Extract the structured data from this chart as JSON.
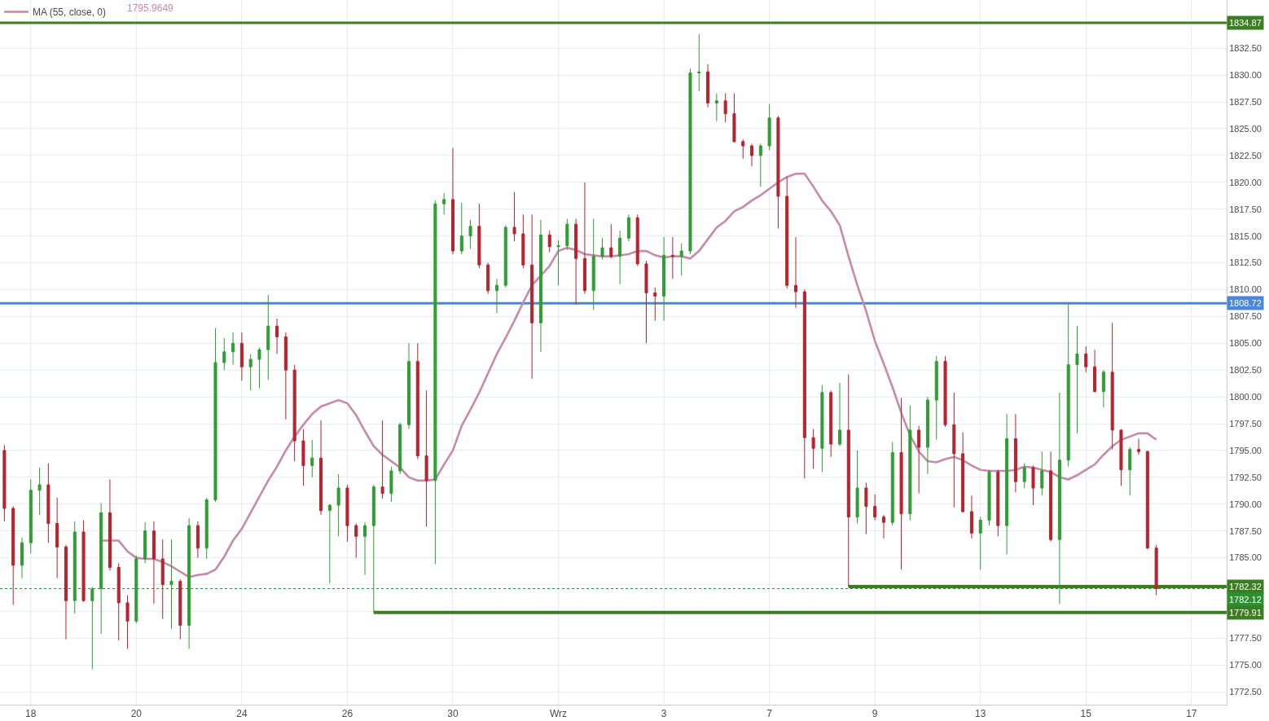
{
  "chart_data": {
    "type": "candlestick",
    "categories": [
      null,
      null,
      null,
      "18",
      null,
      null,
      null,
      null,
      null,
      null,
      null,
      null,
      null,
      null,
      null,
      "20",
      null,
      null,
      null,
      null,
      null,
      null,
      null,
      null,
      null,
      null,
      null,
      "24",
      null,
      null,
      null,
      null,
      null,
      null,
      null,
      null,
      null,
      null,
      null,
      "26",
      null,
      null,
      null,
      null,
      null,
      null,
      null,
      null,
      null,
      null,
      null,
      "30",
      null,
      null,
      null,
      null,
      null,
      null,
      null,
      null,
      null,
      null,
      null,
      "Wrz",
      null,
      null,
      null,
      null,
      null,
      null,
      null,
      null,
      null,
      null,
      null,
      "3",
      null,
      null,
      null,
      null,
      null,
      null,
      null,
      null,
      null,
      null,
      null,
      "7",
      null,
      null,
      null,
      null,
      null,
      null,
      null,
      null,
      null,
      null,
      null,
      "9",
      null,
      null,
      null,
      null,
      null,
      null,
      null,
      null,
      null,
      null,
      null,
      "13",
      null,
      null,
      null,
      null,
      null,
      null,
      null,
      null,
      null,
      null,
      null,
      "15",
      null,
      null,
      null,
      null,
      null,
      null,
      null,
      null,
      null,
      null,
      null,
      "17",
      null,
      null,
      null,
      null
    ],
    "ohlc": [
      [
        1795.0,
        1795.5,
        1788.4,
        1789.6
      ],
      [
        1789.6,
        1789.8,
        1780.6,
        1784.3
      ],
      [
        1784.3,
        1786.9,
        1783.1,
        1786.4
      ],
      [
        1786.4,
        1792.3,
        1785.4,
        1791.3
      ],
      [
        1791.3,
        1793.4,
        1789.0,
        1791.8
      ],
      [
        1791.8,
        1793.8,
        1786.4,
        1788.2
      ],
      [
        1788.2,
        1790.6,
        1783.1,
        1786.0
      ],
      [
        1786.0,
        1786.2,
        1777.4,
        1781.0
      ],
      [
        1781.0,
        1788.4,
        1779.8,
        1787.4
      ],
      [
        1787.4,
        1788.5,
        1780.9,
        1781.0
      ],
      [
        1781.0,
        1782.3,
        1774.6,
        1782.1
      ],
      [
        1782.1,
        1790.1,
        1777.9,
        1789.2
      ],
      [
        1789.2,
        1792.3,
        1783.8,
        1784.1
      ],
      [
        1784.1,
        1784.5,
        1777.3,
        1780.8
      ],
      [
        1780.8,
        1781.5,
        1776.5,
        1779.1
      ],
      [
        1779.1,
        1785.2,
        1778.9,
        1784.9
      ],
      [
        1784.9,
        1788.3,
        1784.5,
        1787.5
      ],
      [
        1787.5,
        1788.4,
        1780.7,
        1784.9
      ],
      [
        1784.9,
        1786.7,
        1779.3,
        1782.5
      ],
      [
        1782.5,
        1786.7,
        1778.4,
        1782.8
      ],
      [
        1782.8,
        1783.0,
        1777.4,
        1778.7
      ],
      [
        1778.7,
        1788.7,
        1776.5,
        1788.0
      ],
      [
        1788.0,
        1788.4,
        1785.0,
        1785.9
      ],
      [
        1785.9,
        1790.6,
        1784.9,
        1790.4
      ],
      [
        1790.4,
        1806.4,
        1790.2,
        1803.2
      ],
      [
        1803.2,
        1805.5,
        1802.5,
        1804.2
      ],
      [
        1804.2,
        1806.0,
        1803.0,
        1805.0
      ],
      [
        1805.0,
        1806.0,
        1801.5,
        1802.8
      ],
      [
        1802.8,
        1804.0,
        1800.6,
        1803.5
      ],
      [
        1803.5,
        1804.6,
        1800.8,
        1804.4
      ],
      [
        1804.4,
        1809.5,
        1801.6,
        1806.6
      ],
      [
        1806.6,
        1807.3,
        1804.0,
        1805.6
      ],
      [
        1805.6,
        1806.0,
        1797.9,
        1802.5
      ],
      [
        1802.5,
        1803.0,
        1794.0,
        1795.9
      ],
      [
        1795.9,
        1797.0,
        1791.7,
        1793.6
      ],
      [
        1793.6,
        1796.0,
        1792.5,
        1794.3
      ],
      [
        1794.3,
        1797.8,
        1789.0,
        1789.4
      ],
      [
        1789.4,
        1790.0,
        1782.6,
        1789.9
      ],
      [
        1789.9,
        1792.8,
        1787.0,
        1791.5
      ],
      [
        1791.5,
        1791.8,
        1786.5,
        1788.0
      ],
      [
        1788.0,
        1788.2,
        1785.0,
        1787.0
      ],
      [
        1787.0,
        1788.3,
        1783.4,
        1788.0
      ],
      [
        1788.0,
        1791.8,
        1779.9,
        1791.6
      ],
      [
        1791.6,
        1797.8,
        1790.5,
        1791.0
      ],
      [
        1791.0,
        1793.5,
        1790.2,
        1793.1
      ],
      [
        1793.1,
        1797.6,
        1792.8,
        1797.4
      ],
      [
        1797.4,
        1805.0,
        1797.0,
        1803.3
      ],
      [
        1803.3,
        1805.0,
        1794.2,
        1794.5
      ],
      [
        1794.5,
        1800.6,
        1787.9,
        1792.2
      ],
      [
        1792.2,
        1818.3,
        1784.4,
        1818.0
      ],
      [
        1818.0,
        1819.0,
        1817.0,
        1818.4
      ],
      [
        1818.4,
        1823.2,
        1813.3,
        1813.6
      ],
      [
        1813.6,
        1818.1,
        1813.3,
        1815.0
      ],
      [
        1815.0,
        1816.5,
        1813.8,
        1815.9
      ],
      [
        1815.9,
        1818.0,
        1812.0,
        1812.3
      ],
      [
        1812.3,
        1812.5,
        1809.6,
        1809.9
      ],
      [
        1809.9,
        1811.0,
        1807.8,
        1810.4
      ],
      [
        1810.4,
        1816.0,
        1810.2,
        1815.8
      ],
      [
        1815.8,
        1819.1,
        1814.5,
        1815.2
      ],
      [
        1815.2,
        1817.0,
        1812.0,
        1812.3
      ],
      [
        1812.3,
        1817.0,
        1801.7,
        1806.9
      ],
      [
        1806.9,
        1816.5,
        1804.2,
        1815.1
      ],
      [
        1815.1,
        1815.5,
        1813.5,
        1814.0
      ],
      [
        1814.0,
        1814.6,
        1810.4,
        1814.1
      ],
      [
        1814.1,
        1816.6,
        1813.7,
        1816.1
      ],
      [
        1816.1,
        1816.6,
        1808.6,
        1812.9
      ],
      [
        1812.9,
        1820.0,
        1809.6,
        1809.9
      ],
      [
        1809.9,
        1816.6,
        1808.1,
        1813.1
      ],
      [
        1813.1,
        1814.8,
        1812.8,
        1813.9
      ],
      [
        1813.9,
        1816.1,
        1812.9,
        1813.1
      ],
      [
        1813.1,
        1815.5,
        1810.5,
        1814.8
      ],
      [
        1814.8,
        1817.0,
        1814.5,
        1816.7
      ],
      [
        1816.7,
        1817.0,
        1812.2,
        1812.4
      ],
      [
        1812.4,
        1812.7,
        1805.0,
        1809.7
      ],
      [
        1809.7,
        1810.2,
        1807.1,
        1809.4
      ],
      [
        1809.4,
        1814.9,
        1807.1,
        1813.2
      ],
      [
        1813.2,
        1814.9,
        1811.0,
        1813.1
      ],
      [
        1813.1,
        1814.3,
        1811.3,
        1813.6
      ],
      [
        1813.6,
        1830.6,
        1813.3,
        1830.2
      ],
      [
        1830.2,
        1833.8,
        1828.5,
        1830.3
      ],
      [
        1830.3,
        1831.0,
        1827.0,
        1827.4
      ],
      [
        1827.4,
        1828.3,
        1825.7,
        1827.6
      ],
      [
        1827.6,
        1828.3,
        1825.6,
        1826.4
      ],
      [
        1826.4,
        1828.3,
        1823.7,
        1823.8
      ],
      [
        1823.8,
        1824.0,
        1822.2,
        1823.4
      ],
      [
        1823.4,
        1823.6,
        1821.5,
        1822.5
      ],
      [
        1822.5,
        1823.6,
        1819.6,
        1823.4
      ],
      [
        1823.4,
        1827.3,
        1823.0,
        1826.0
      ],
      [
        1826.0,
        1826.2,
        1815.7,
        1818.7
      ],
      [
        1818.7,
        1820.5,
        1810.1,
        1810.4
      ],
      [
        1810.4,
        1814.9,
        1808.3,
        1809.8
      ],
      [
        1809.8,
        1810.0,
        1792.4,
        1796.2
      ],
      [
        1796.2,
        1797.0,
        1793.3,
        1795.2
      ],
      [
        1795.2,
        1801.1,
        1793.0,
        1800.4
      ],
      [
        1800.4,
        1800.6,
        1794.4,
        1795.6
      ],
      [
        1795.6,
        1801.3,
        1795.4,
        1796.9
      ],
      [
        1796.9,
        1802.1,
        1782.3,
        1788.8
      ],
      [
        1788.8,
        1795.0,
        1788.2,
        1791.5
      ],
      [
        1791.5,
        1792.0,
        1787.2,
        1789.8
      ],
      [
        1789.8,
        1790.9,
        1788.5,
        1788.8
      ],
      [
        1788.8,
        1789.0,
        1786.8,
        1788.3
      ],
      [
        1788.3,
        1795.8,
        1788.0,
        1794.8
      ],
      [
        1794.8,
        1799.9,
        1783.9,
        1789.1
      ],
      [
        1789.1,
        1799.2,
        1788.5,
        1796.9
      ],
      [
        1796.9,
        1797.3,
        1791.0,
        1795.3
      ],
      [
        1795.3,
        1800.0,
        1792.8,
        1799.7
      ],
      [
        1799.7,
        1803.8,
        1796.0,
        1803.3
      ],
      [
        1803.3,
        1803.8,
        1797.2,
        1797.4
      ],
      [
        1797.4,
        1800.4,
        1789.7,
        1794.7
      ],
      [
        1794.7,
        1796.7,
        1789.2,
        1789.3
      ],
      [
        1789.3,
        1790.8,
        1786.8,
        1787.3
      ],
      [
        1787.3,
        1788.8,
        1783.9,
        1788.5
      ],
      [
        1788.5,
        1793.2,
        1788.0,
        1793.0
      ],
      [
        1793.0,
        1793.2,
        1787.0,
        1788.0
      ],
      [
        1788.0,
        1798.4,
        1785.3,
        1796.1
      ],
      [
        1796.1,
        1798.4,
        1791.1,
        1792.1
      ],
      [
        1792.1,
        1793.8,
        1791.5,
        1793.4
      ],
      [
        1793.4,
        1793.6,
        1789.9,
        1791.5
      ],
      [
        1791.5,
        1794.9,
        1790.8,
        1793.1
      ],
      [
        1793.1,
        1794.9,
        1786.5,
        1786.7
      ],
      [
        1786.7,
        1800.4,
        1780.7,
        1794.1
      ],
      [
        1794.1,
        1808.7,
        1793.5,
        1803.0
      ],
      [
        1803.0,
        1806.6,
        1796.6,
        1804.0
      ],
      [
        1804.0,
        1804.7,
        1802.3,
        1802.8
      ],
      [
        1802.8,
        1804.4,
        1800.4,
        1800.5
      ],
      [
        1800.5,
        1802.5,
        1799.0,
        1802.3
      ],
      [
        1802.3,
        1806.9,
        1795.1,
        1796.9
      ],
      [
        1796.9,
        1797.0,
        1791.7,
        1793.2
      ],
      [
        1793.2,
        1795.3,
        1790.8,
        1795.1
      ],
      [
        1795.1,
        1796.1,
        1794.6,
        1794.9
      ],
      [
        1794.9,
        1795.0,
        1785.8,
        1785.9
      ],
      [
        1785.9,
        1786.2,
        1781.5,
        1782.12
      ],
      null,
      null,
      null,
      null,
      null,
      null,
      null,
      null
    ],
    "colors": [
      "#b8232f",
      "#b8232f",
      "#2f9e34",
      "#2f9e34",
      "#2f9e34",
      "#b8232f",
      "#b8232f",
      "#b8232f",
      "#2f9e34",
      "#b8232f",
      "#2f9e34",
      "#2f9e34",
      "#b8232f",
      "#b8232f",
      "#b8232f",
      "#2f9e34",
      "#2f9e34",
      "#b8232f",
      "#b8232f",
      "#2f9e34",
      "#b8232f",
      "#2f9e34",
      "#b8232f",
      "#2f9e34",
      "#2f9e34",
      "#2f9e34",
      "#2f9e34",
      "#b8232f",
      "#2f9e34",
      "#2f9e34",
      "#2f9e34",
      "#b8232f",
      "#b8232f",
      "#b8232f",
      "#b8232f",
      "#2f9e34",
      "#b8232f",
      "#2f9e34",
      "#2f9e34",
      "#b8232f",
      "#b8232f",
      "#2f9e34",
      "#2f9e34",
      "#b8232f",
      "#2f9e34",
      "#2f9e34",
      "#2f9e34",
      "#b8232f",
      "#b8232f",
      "#2f9e34",
      "#2f9e34",
      "#b8232f",
      "#2f9e34",
      "#2f9e34",
      "#b8232f",
      "#b8232f",
      "#2f9e34",
      "#2f9e34",
      "#b8232f",
      "#b8232f",
      "#b8232f",
      "#2f9e34",
      "#b8232f",
      "#2f9e34",
      "#2f9e34",
      "#b8232f",
      "#b8232f",
      "#2f9e34",
      "#2f9e34",
      "#b8232f",
      "#2f9e34",
      "#2f9e34",
      "#b8232f",
      "#b8232f",
      "#b8232f",
      "#2f9e34",
      "#b8232f",
      "#2f9e34",
      "#2f9e34",
      "#2f9e34",
      "#b8232f",
      "#2f9e34",
      "#b8232f",
      "#b8232f",
      "#b8232f",
      "#b8232f",
      "#2f9e34",
      "#2f9e34",
      "#b8232f",
      "#b8232f",
      "#b8232f",
      "#b8232f",
      "#b8232f",
      "#2f9e34",
      "#b8232f",
      "#2f9e34",
      "#b8232f",
      "#2f9e34",
      "#b8232f",
      "#b8232f",
      "#b8232f",
      "#2f9e34",
      "#b8232f",
      "#2f9e34",
      "#b8232f",
      "#2f9e34",
      "#2f9e34",
      "#b8232f",
      "#b8232f",
      "#b8232f",
      "#b8232f",
      "#2f9e34",
      "#2f9e34",
      "#b8232f",
      "#2f9e34",
      "#b8232f",
      "#2f9e34",
      "#b8232f",
      "#2f9e34",
      "#b8232f",
      "#2f9e34",
      "#2f9e34",
      "#2f9e34",
      "#b8232f",
      "#b8232f",
      "#2f9e34",
      "#b8232f",
      "#b8232f",
      "#2f9e34",
      "#b8232f",
      "#b8232f",
      "#b8232f",
      null,
      null,
      null,
      null,
      null,
      null,
      null,
      null
    ],
    "series": [
      {
        "name": "MA (55, close, 0)",
        "type": "line",
        "color": "#c68aab",
        "values": [
          null,
          null,
          null,
          null,
          null,
          null,
          null,
          null,
          null,
          null,
          null,
          1786.6,
          1786.6,
          1786.6,
          1785.6,
          1785.0,
          1784.9,
          1784.9,
          1784.6,
          1784.2,
          1783.7,
          1783.2,
          1783.4,
          1783.5,
          1783.9,
          1785.1,
          1786.6,
          1787.7,
          1789.2,
          1790.7,
          1792.2,
          1793.5,
          1795.0,
          1796.3,
          1797.4,
          1798.4,
          1799.1,
          1799.4,
          1799.7,
          1799.4,
          1798.3,
          1796.8,
          1795.4,
          1794.6,
          1794.0,
          1793.4,
          1792.5,
          1792.2,
          1792.2,
          1792.3,
          1793.7,
          1795.0,
          1797.3,
          1798.8,
          1800.4,
          1802.2,
          1804.0,
          1805.5,
          1807.1,
          1808.8,
          1810.4,
          1811.3,
          1812.2,
          1813.6,
          1813.9,
          1813.7,
          1813.3,
          1813.2,
          1813.1,
          1813.1,
          1813.2,
          1813.3,
          1813.6,
          1813.6,
          1813.2,
          1813.0,
          1813.1,
          1813.1,
          1812.9,
          1813.6,
          1814.7,
          1815.8,
          1816.4,
          1817.3,
          1817.7,
          1818.3,
          1818.8,
          1819.4,
          1820.0,
          1820.5,
          1820.8,
          1820.8,
          1819.6,
          1818.3,
          1817.3,
          1816.0,
          1813.1,
          1810.4,
          1808.0,
          1805.2,
          1803.1,
          1800.9,
          1798.5,
          1796.4,
          1794.9,
          1794.0,
          1793.9,
          1794.2,
          1794.4,
          1794.1,
          1793.6,
          1793.2,
          1793.1,
          1793.1,
          1793.1,
          1793.2,
          1793.5,
          1793.4,
          1793.2,
          1793.0,
          1792.5,
          1792.3,
          1792.7,
          1793.2,
          1793.7,
          1794.6,
          1795.4,
          1796.0,
          1796.3,
          1796.6,
          1796.6,
          1796.0,
          null,
          null,
          null,
          null,
          null,
          null,
          null,
          null
        ]
      },
      {
        "type": "line",
        "color": "#3b7d23",
        "values": [
          null,
          null,
          null,
          null,
          null,
          null,
          null,
          null,
          null,
          null,
          null,
          null,
          null,
          null,
          null,
          null,
          null,
          null,
          null,
          null,
          null,
          null,
          null,
          null,
          null,
          null,
          null,
          null,
          null,
          null,
          null,
          null,
          null,
          null,
          null,
          null,
          null,
          null,
          null,
          null,
          null,
          null,
          1779.91,
          1779.91,
          1779.91,
          1779.91,
          1779.91,
          1779.91,
          1779.91,
          1779.91,
          1779.91,
          1779.91,
          1779.91,
          1779.91,
          1779.91,
          1779.91,
          1779.91,
          1779.91,
          1779.91,
          1779.91,
          1779.91,
          1779.91,
          1779.91,
          1779.91,
          1779.91,
          1779.91,
          1779.91,
          1779.91,
          1779.91,
          1779.91,
          1779.91,
          1779.91,
          1779.91,
          1779.91,
          1779.91,
          1779.91,
          1779.91,
          1779.91,
          1779.91,
          1779.91,
          1779.91,
          1779.91,
          1779.91,
          1779.91,
          1779.91,
          1779.91,
          1779.91,
          1779.91,
          1779.91,
          1779.91,
          1779.91,
          1779.91,
          1779.91,
          1779.91,
          1779.91,
          1779.91,
          1779.91,
          1779.91,
          1779.91,
          1779.91,
          1779.91,
          1779.91,
          1779.91,
          1779.91,
          1779.91,
          1779.91,
          1779.91,
          1779.91,
          1779.91,
          1779.91,
          1779.91,
          1779.91,
          1779.91,
          1779.91,
          1779.91,
          1779.91,
          1779.91,
          1779.91,
          1779.91,
          1779.91,
          1779.91,
          1779.91,
          1779.91,
          1779.91,
          1779.91,
          1779.91,
          1779.91,
          1779.91,
          1779.91,
          1779.91,
          1779.91,
          1779.91,
          1779.91,
          1779.91,
          1779.91,
          1779.91,
          1779.91,
          1779.91,
          1779.91,
          1779.91
        ],
        "value_labels": [
          null,
          null,
          null,
          null,
          null,
          null,
          null,
          null,
          null,
          null,
          null,
          null,
          null,
          null,
          null,
          null,
          null,
          null,
          null,
          null,
          null,
          null,
          null,
          null,
          null,
          null,
          null,
          null,
          null,
          null,
          null,
          null,
          null,
          null,
          null,
          null,
          null,
          null,
          null,
          null,
          null,
          null,
          null,
          null,
          null,
          null,
          null,
          null,
          null,
          null,
          null,
          null,
          null,
          null,
          null,
          null,
          null,
          null,
          null,
          null,
          null,
          null,
          null,
          null,
          null,
          null,
          null,
          null,
          null,
          null,
          null,
          null,
          null,
          null,
          null,
          null,
          null,
          null,
          null,
          null,
          null,
          null,
          null,
          null,
          null,
          null,
          null,
          null,
          null,
          null,
          null,
          null,
          null,
          null,
          null,
          null,
          null,
          null,
          null,
          null,
          null,
          null,
          null,
          null,
          null,
          null,
          null,
          null,
          null,
          null,
          null,
          null,
          null,
          null,
          null,
          null,
          null,
          null,
          null,
          null,
          null,
          null,
          null,
          null,
          null,
          null,
          null,
          null,
          null,
          null,
          null,
          null,
          null,
          null,
          null,
          null,
          null,
          null,
          null,
          "1779.91"
        ]
      },
      {
        "type": "line",
        "color": "#3b7d23",
        "values": [
          null,
          null,
          null,
          null,
          null,
          null,
          null,
          null,
          null,
          null,
          null,
          null,
          null,
          null,
          null,
          null,
          null,
          null,
          null,
          null,
          null,
          null,
          null,
          null,
          null,
          null,
          null,
          null,
          null,
          null,
          null,
          null,
          null,
          null,
          null,
          null,
          null,
          null,
          null,
          null,
          null,
          null,
          null,
          null,
          null,
          null,
          null,
          null,
          null,
          null,
          null,
          null,
          null,
          null,
          null,
          null,
          null,
          null,
          null,
          null,
          null,
          null,
          null,
          null,
          null,
          null,
          null,
          null,
          null,
          null,
          null,
          null,
          null,
          null,
          null,
          null,
          null,
          null,
          null,
          null,
          null,
          null,
          null,
          null,
          null,
          null,
          null,
          null,
          null,
          null,
          null,
          null,
          null,
          null,
          null,
          null,
          1782.32,
          1782.32,
          1782.32,
          1782.32,
          1782.32,
          1782.32,
          1782.32,
          1782.32,
          1782.32,
          1782.32,
          1782.32,
          1782.32,
          1782.32,
          1782.32,
          1782.32,
          1782.32,
          1782.32,
          1782.32,
          1782.32,
          1782.32,
          1782.32,
          1782.32,
          1782.32,
          1782.32,
          1782.32,
          1782.32,
          1782.32,
          1782.32,
          1782.32,
          1782.32,
          1782.32,
          1782.32,
          1782.32,
          1782.32,
          1782.32,
          1782.32,
          1782.32,
          1782.32,
          1782.32,
          1782.32,
          1782.32,
          1782.32,
          1782.32,
          1782.32
        ],
        "value_labels": [
          null,
          null,
          null,
          null,
          null,
          null,
          null,
          null,
          null,
          null,
          null,
          null,
          null,
          null,
          null,
          null,
          null,
          null,
          null,
          null,
          null,
          null,
          null,
          null,
          null,
          null,
          null,
          null,
          null,
          null,
          null,
          null,
          null,
          null,
          null,
          null,
          null,
          null,
          null,
          null,
          null,
          null,
          null,
          null,
          null,
          null,
          null,
          null,
          null,
          null,
          null,
          null,
          null,
          null,
          null,
          null,
          null,
          null,
          null,
          null,
          null,
          null,
          null,
          null,
          null,
          null,
          null,
          null,
          null,
          null,
          null,
          null,
          null,
          null,
          null,
          null,
          null,
          null,
          null,
          null,
          null,
          null,
          null,
          null,
          null,
          null,
          null,
          null,
          null,
          null,
          null,
          null,
          null,
          null,
          null,
          null,
          null,
          null,
          null,
          null,
          null,
          null,
          null,
          null,
          null,
          null,
          null,
          null,
          null,
          null,
          null,
          null,
          null,
          null,
          null,
          null,
          null,
          null,
          null,
          null,
          null,
          null,
          null,
          null,
          null,
          null,
          null,
          null,
          null,
          null,
          null,
          null,
          null,
          null,
          null,
          null,
          null,
          null,
          null,
          "1782.32"
        ]
      }
    ],
    "ref_lines": [
      {
        "axis": "y",
        "value": 1834.87,
        "label": "1834.87",
        "color": "#3b7d23"
      },
      {
        "axis": "y",
        "value": 1808.72,
        "label": "1808.72",
        "color": "#4a86dc"
      },
      {
        "axis": "y",
        "value": 1782.12,
        "label": "1782.12",
        "color": "#2e8f2e",
        "line_style": "dotted"
      }
    ],
    "annotations": [
      "1795.9649"
    ],
    "ylim": [
      1771.3,
      1837.0
    ],
    "yticks": [
      {
        "value": 1772.5,
        "label": "1772.50"
      },
      {
        "value": 1775,
        "label": "1775.00"
      },
      {
        "value": 1777.5,
        "label": "1777.50"
      },
      {
        "value": 1780,
        "label": null
      },
      {
        "value": 1782.5,
        "label": null
      },
      {
        "value": 1785,
        "label": "1785.00"
      },
      {
        "value": 1787.5,
        "label": "1787.50"
      },
      {
        "value": 1790,
        "label": "1790.00"
      },
      {
        "value": 1792.5,
        "label": "1792.50"
      },
      {
        "value": 1795,
        "label": "1795.00"
      },
      {
        "value": 1797.5,
        "label": "1797.50"
      },
      {
        "value": 1800,
        "label": "1800.00"
      },
      {
        "value": 1802.5,
        "label": "1802.50"
      },
      {
        "value": 1805,
        "label": "1805.00"
      },
      {
        "value": 1807.5,
        "label": "1807.50"
      },
      {
        "value": 1810,
        "label": "1810.00"
      },
      {
        "value": 1812.5,
        "label": "1812.50"
      },
      {
        "value": 1815,
        "label": "1815.00"
      },
      {
        "value": 1817.5,
        "label": "1817.50"
      },
      {
        "value": 1820,
        "label": "1820.00"
      },
      {
        "value": 1822.5,
        "label": "1822.50"
      },
      {
        "value": 1825,
        "label": "1825.00"
      },
      {
        "value": 1827.5,
        "label": "1827.50"
      },
      {
        "value": 1830,
        "label": "1830.00"
      },
      {
        "value": 1832.5,
        "label": "1832.50"
      }
    ],
    "grid": true,
    "legend": "top left"
  }
}
